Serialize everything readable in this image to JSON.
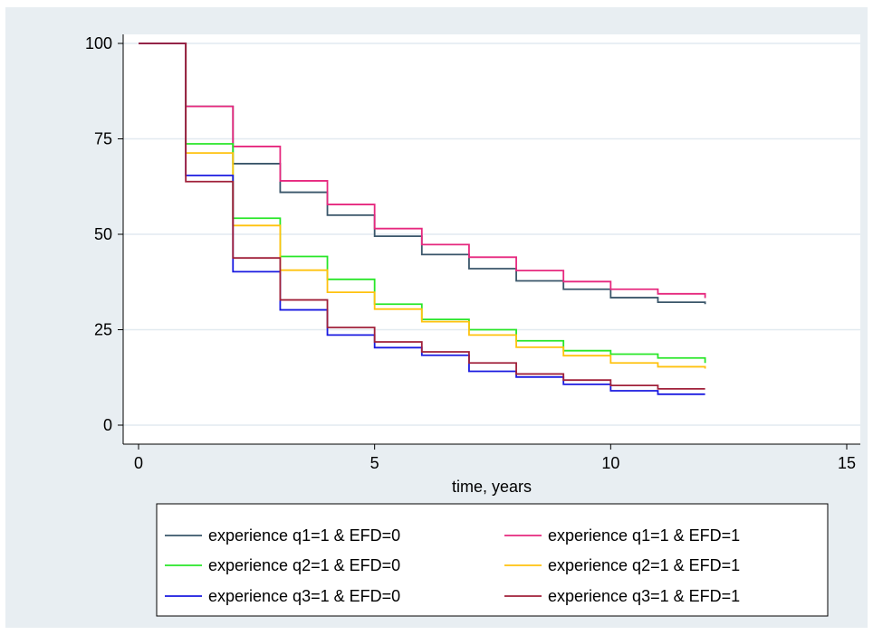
{
  "chart_data": {
    "type": "line",
    "step": true,
    "title": "",
    "xlabel": "time, years",
    "ylabel": "",
    "xlim": [
      0,
      15
    ],
    "ylim": [
      0,
      100
    ],
    "xticks": [
      0,
      5,
      10,
      15
    ],
    "yticks": [
      0,
      25,
      50,
      75,
      100
    ],
    "grid": "horizontal",
    "legend": {
      "position": "bottom",
      "columns": 2
    },
    "x": [
      0,
      1,
      2,
      3,
      4,
      5,
      6,
      7,
      8,
      9,
      10,
      11,
      12
    ],
    "series": [
      {
        "name": "experience q1=1 & EFD=0",
        "color": "#3a566a",
        "values": [
          100,
          83.5,
          68.5,
          61,
          55,
          49.5,
          44.7,
          41,
          37.8,
          35.6,
          33.4,
          32.2,
          31.7
        ]
      },
      {
        "name": "experience q1=1 & EFD=1",
        "color": "#e6287e",
        "values": [
          100,
          83.5,
          73,
          64,
          57.8,
          51.5,
          47.3,
          44,
          40.5,
          37.6,
          35.6,
          34.4,
          33.3
        ]
      },
      {
        "name": "experience q2=1 & EFD=0",
        "color": "#28e628",
        "values": [
          100,
          73.7,
          54.2,
          44.2,
          38.2,
          31.7,
          27.7,
          25,
          22.1,
          19.5,
          18.6,
          17.6,
          16.3
        ]
      },
      {
        "name": "experience q2=1 & EFD=1",
        "color": "#ffc20e",
        "values": [
          100,
          71.3,
          52.3,
          40.6,
          34.8,
          30.4,
          27.1,
          23.6,
          20.4,
          18.2,
          16.3,
          15.3,
          14.8
        ]
      },
      {
        "name": "experience q3=1 & EFD=0",
        "color": "#1a1ae0",
        "values": [
          100,
          65.4,
          40.2,
          30.2,
          23.6,
          20.3,
          18.3,
          14.1,
          12.6,
          10.7,
          9,
          8.1,
          8.1
        ]
      },
      {
        "name": "experience q3=1 & EFD=1",
        "color": "#a0203a",
        "values": [
          100,
          63.8,
          43.8,
          32.8,
          25.6,
          21.8,
          19.2,
          16.3,
          13.4,
          11.8,
          10.4,
          9.5,
          9.5
        ]
      }
    ]
  }
}
